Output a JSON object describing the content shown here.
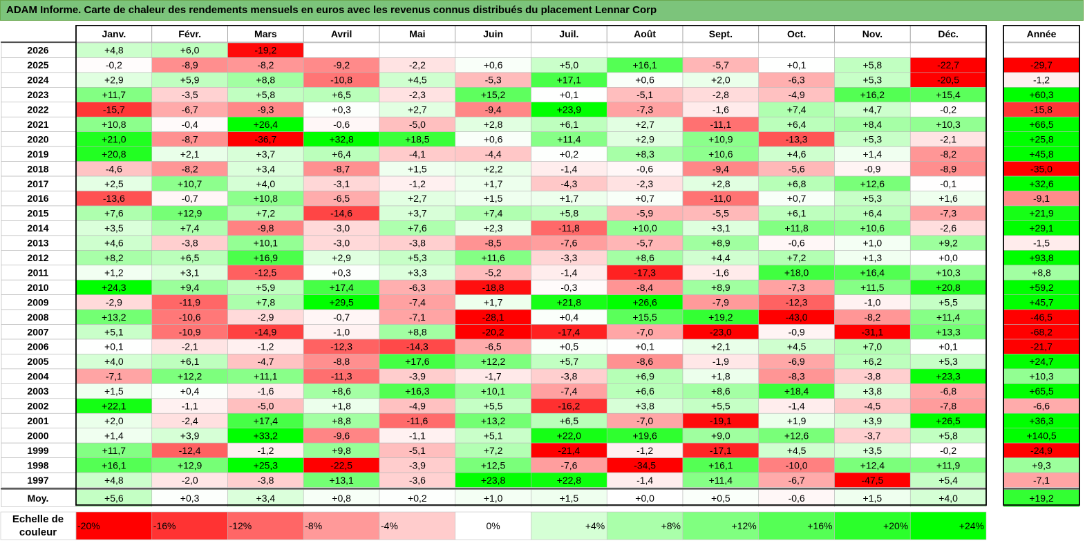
{
  "title": "ADAM Informe. Carte de chaleur des rendements mensuels en euros avec les revenus connus distribués du placement Lennar Corp",
  "scale_label": "Echelle de couleur",
  "colors": {
    "negative": "#ff0000",
    "neutral": "#ffffff",
    "positive": "#00ff00",
    "title_bar": "#7cc47b"
  },
  "chart_data": {
    "type": "heatmap",
    "title": "ADAM Informe. Carte de chaleur des rendements mensuels en euros avec les revenus connus distribués du placement Lennar Corp",
    "columns": [
      "Janv.",
      "Févr.",
      "Mars",
      "Avril",
      "Mai",
      "Juin",
      "Juil.",
      "Août",
      "Sept.",
      "Oct.",
      "Nov.",
      "Déc."
    ],
    "year_column": "Année",
    "rows": [
      {
        "label": "2026",
        "values": [
          "+4,8",
          "+6,0",
          "-19,2",
          "",
          "",
          "",
          "",
          "",
          "",
          "",
          "",
          ""
        ],
        "year": ""
      },
      {
        "label": "2025",
        "values": [
          "-0,2",
          "-8,9",
          "-8,2",
          "-9,2",
          "-2,2",
          "+0,6",
          "+5,0",
          "+16,1",
          "-5,7",
          "+0,1",
          "+5,8",
          "-22,7"
        ],
        "year": "-29,7"
      },
      {
        "label": "2024",
        "values": [
          "+2,9",
          "+5,9",
          "+8,8",
          "-10,8",
          "+4,5",
          "-5,3",
          "+17,1",
          "+0,6",
          "+2,0",
          "-6,3",
          "+5,3",
          "-20,5"
        ],
        "year": "-1,2"
      },
      {
        "label": "2023",
        "values": [
          "+11,7",
          "-3,5",
          "+5,8",
          "+6,5",
          "-2,3",
          "+15,2",
          "+0,1",
          "-5,1",
          "-2,8",
          "-4,9",
          "+16,2",
          "+15,4"
        ],
        "year": "+60,3"
      },
      {
        "label": "2022",
        "values": [
          "-15,7",
          "-6,7",
          "-9,3",
          "+0,3",
          "+2,7",
          "-9,4",
          "+23,9",
          "-7,3",
          "-1,6",
          "+7,4",
          "+4,7",
          "-0,2"
        ],
        "year": "-15,8"
      },
      {
        "label": "2021",
        "values": [
          "+10,8",
          "-0,4",
          "+26,4",
          "-0,6",
          "-5,0",
          "+2,8",
          "+6,1",
          "+2,7",
          "-11,1",
          "+6,4",
          "+8,4",
          "+10,3"
        ],
        "year": "+66,5"
      },
      {
        "label": "2020",
        "values": [
          "+21,0",
          "-8,7",
          "-36,7",
          "+32,8",
          "+18,5",
          "+0,6",
          "+11,4",
          "+2,9",
          "+10,9",
          "-13,3",
          "+5,3",
          "-2,1"
        ],
        "year": "+25,8"
      },
      {
        "label": "2019",
        "values": [
          "+20,8",
          "+2,1",
          "+3,7",
          "+6,4",
          "-4,1",
          "-4,4",
          "+0,2",
          "+8,3",
          "+10,6",
          "+4,6",
          "+1,4",
          "-8,2"
        ],
        "year": "+45,8"
      },
      {
        "label": "2018",
        "values": [
          "-4,6",
          "-8,2",
          "+3,4",
          "-8,7",
          "+1,5",
          "+2,2",
          "-1,4",
          "-0,6",
          "-9,4",
          "-5,6",
          "-0,9",
          "-8,9"
        ],
        "year": "-35,0"
      },
      {
        "label": "2017",
        "values": [
          "+2,5",
          "+10,7",
          "+4,0",
          "-3,1",
          "-1,2",
          "+1,7",
          "-4,3",
          "-2,3",
          "+2,8",
          "+6,8",
          "+12,6",
          "-0,1"
        ],
        "year": "+32,6"
      },
      {
        "label": "2016",
        "values": [
          "-13,6",
          "-0,7",
          "+10,8",
          "-6,5",
          "+2,7",
          "+1,5",
          "+1,7",
          "+0,7",
          "-11,0",
          "+0,7",
          "+5,3",
          "+1,6"
        ],
        "year": "-9,1"
      },
      {
        "label": "2015",
        "values": [
          "+7,6",
          "+12,9",
          "+7,2",
          "-14,6",
          "+3,7",
          "+7,4",
          "+5,8",
          "-5,9",
          "-5,5",
          "+6,1",
          "+6,4",
          "-7,3"
        ],
        "year": "+21,9"
      },
      {
        "label": "2014",
        "values": [
          "+3,5",
          "+7,4",
          "-9,8",
          "-3,0",
          "+7,6",
          "+2,3",
          "-11,8",
          "+10,0",
          "+3,1",
          "+11,8",
          "+10,6",
          "-2,6"
        ],
        "year": "+29,1"
      },
      {
        "label": "2013",
        "values": [
          "+4,6",
          "-3,8",
          "+10,1",
          "-3,0",
          "-3,8",
          "-8,5",
          "-7,6",
          "-5,7",
          "+8,9",
          "-0,6",
          "+1,0",
          "+9,2"
        ],
        "year": "-1,5"
      },
      {
        "label": "2012",
        "values": [
          "+8,2",
          "+6,5",
          "+16,9",
          "+2,9",
          "+5,3",
          "+11,6",
          "-3,3",
          "+8,6",
          "+4,4",
          "+7,2",
          "+1,3",
          "+0,0"
        ],
        "year": "+93,8"
      },
      {
        "label": "2011",
        "values": [
          "+1,2",
          "+3,1",
          "-12,5",
          "+0,3",
          "+3,3",
          "-5,2",
          "-1,4",
          "-17,3",
          "-1,6",
          "+18,0",
          "+16,4",
          "+10,3"
        ],
        "year": "+8,8"
      },
      {
        "label": "2010",
        "values": [
          "+24,3",
          "+9,4",
          "+5,9",
          "+17,4",
          "-6,3",
          "-18,8",
          "-0,3",
          "-8,4",
          "+8,9",
          "-7,3",
          "+11,5",
          "+20,8"
        ],
        "year": "+59,2"
      },
      {
        "label": "2009",
        "values": [
          "-2,9",
          "-11,9",
          "+7,8",
          "+29,5",
          "-7,4",
          "+1,7",
          "+21,8",
          "+26,6",
          "-7,9",
          "-12,3",
          "-1,0",
          "+5,5"
        ],
        "year": "+45,7"
      },
      {
        "label": "2008",
        "values": [
          "+13,2",
          "-10,6",
          "-2,9",
          "-0,7",
          "-7,1",
          "-28,1",
          "+0,4",
          "+15,5",
          "+19,2",
          "-43,0",
          "-8,2",
          "+11,4"
        ],
        "year": "-46,5"
      },
      {
        "label": "2007",
        "values": [
          "+5,1",
          "-10,9",
          "-14,9",
          "-1,0",
          "+8,8",
          "-20,2",
          "-17,4",
          "-7,0",
          "-23,0",
          "-0,9",
          "-31,1",
          "+13,3"
        ],
        "year": "-68,2"
      },
      {
        "label": "2006",
        "values": [
          "+0,1",
          "-2,1",
          "-1,2",
          "-12,3",
          "-14,3",
          "-6,5",
          "+0,5",
          "+0,1",
          "+2,1",
          "+4,5",
          "+7,0",
          "+0,1"
        ],
        "year": "-21,7"
      },
      {
        "label": "2005",
        "values": [
          "+4,0",
          "+6,1",
          "-4,7",
          "-8,8",
          "+17,6",
          "+12,2",
          "+5,7",
          "-8,6",
          "-1,9",
          "-6,9",
          "+6,2",
          "+5,3"
        ],
        "year": "+24,7"
      },
      {
        "label": "2004",
        "values": [
          "-7,1",
          "+12,2",
          "+11,1",
          "-11,3",
          "-3,9",
          "-1,7",
          "-3,8",
          "+6,9",
          "+1,8",
          "-8,3",
          "-3,8",
          "+23,3"
        ],
        "year": "+10,3"
      },
      {
        "label": "2003",
        "values": [
          "+1,5",
          "+0,4",
          "-1,6",
          "+8,6",
          "+16,3",
          "+10,1",
          "-7,4",
          "+6,6",
          "+8,6",
          "+18,4",
          "+3,8",
          "-6,8"
        ],
        "year": "+65,5"
      },
      {
        "label": "2002",
        "values": [
          "+22,1",
          "-1,1",
          "-5,0",
          "+1,8",
          "-4,9",
          "+5,5",
          "-16,2",
          "+3,8",
          "+5,5",
          "-1,4",
          "-4,5",
          "-7,8"
        ],
        "year": "-6,6"
      },
      {
        "label": "2001",
        "values": [
          "+2,0",
          "-2,4",
          "+17,4",
          "+8,8",
          "-11,6",
          "+13,2",
          "+6,5",
          "-7,0",
          "-19,1",
          "+1,9",
          "+3,9",
          "+26,5"
        ],
        "year": "+36,3"
      },
      {
        "label": "2000",
        "values": [
          "+1,4",
          "+3,9",
          "+33,2",
          "-9,6",
          "-1,1",
          "+5,1",
          "+22,0",
          "+19,6",
          "+9,0",
          "+12,6",
          "-3,7",
          "+5,8"
        ],
        "year": "+140,5"
      },
      {
        "label": "1999",
        "values": [
          "+11,7",
          "-12,4",
          "-1,2",
          "+9,8",
          "-5,1",
          "+7,2",
          "-21,4",
          "-1,2",
          "-17,1",
          "+4,5",
          "+3,5",
          "-0,2"
        ],
        "year": "-24,9"
      },
      {
        "label": "1998",
        "values": [
          "+16,1",
          "+12,9",
          "+25,3",
          "-22,5",
          "-3,9",
          "+12,5",
          "-7,6",
          "-34,5",
          "+16,1",
          "-10,0",
          "+12,4",
          "+11,9"
        ],
        "year": "+9,3"
      },
      {
        "label": "1997",
        "values": [
          "+4,8",
          "-2,0",
          "-3,8",
          "+13,1",
          "-3,6",
          "+23,8",
          "+22,8",
          "-1,4",
          "+11,4",
          "-6,7",
          "-47,5",
          "+5,4"
        ],
        "year": "-7,1"
      }
    ],
    "average_row": {
      "label": "Moy.",
      "values": [
        "+5,6",
        "+0,3",
        "+3,4",
        "+0,8",
        "+0,2",
        "+1,0",
        "+1,5",
        "+0,0",
        "+0,5",
        "-0,6",
        "+1,5",
        "+4,0"
      ],
      "year": "+19,2"
    },
    "scale": [
      "-20%",
      "-16%",
      "-12%",
      "-8%",
      "-4%",
      "0%",
      "+4%",
      "+8%",
      "+12%",
      "+16%",
      "+20%",
      "+24%"
    ],
    "scale_values": [
      -20,
      -16,
      -12,
      -8,
      -4,
      0,
      4,
      8,
      12,
      16,
      20,
      24
    ],
    "color_range": {
      "min": -20,
      "max": 24
    }
  }
}
